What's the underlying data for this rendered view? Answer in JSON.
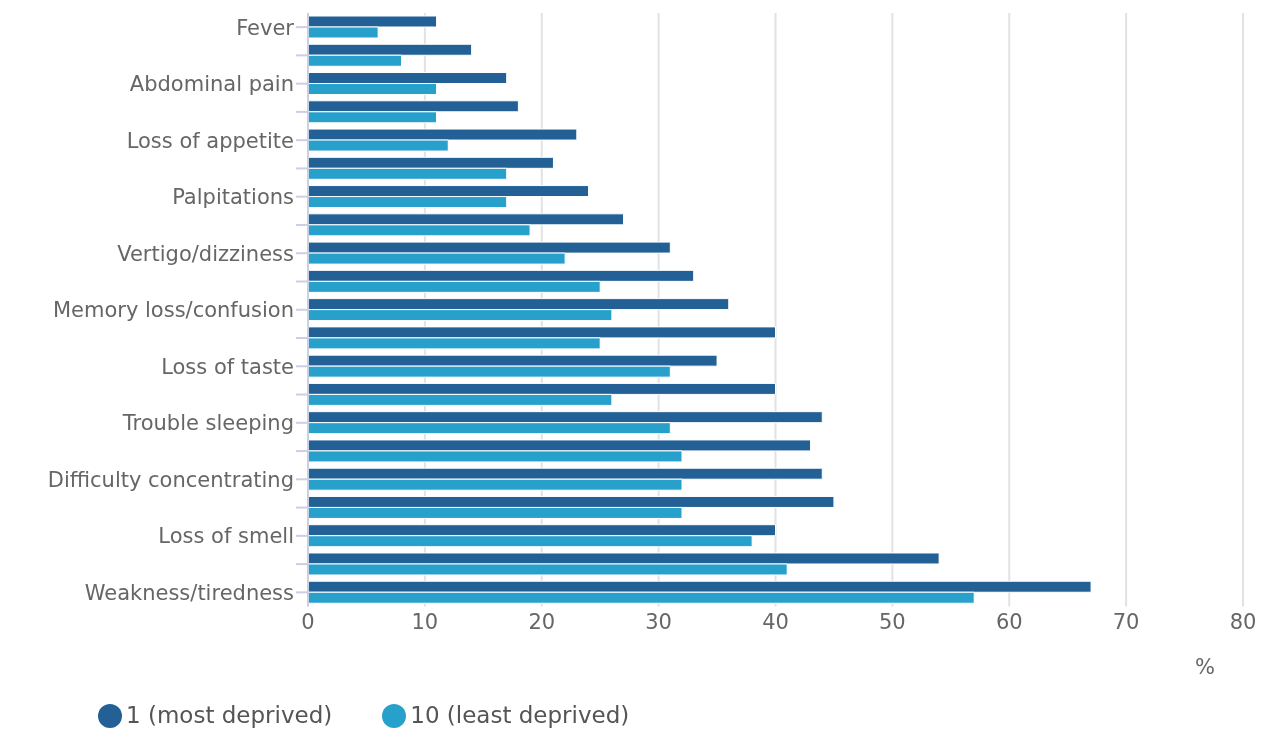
{
  "chart_data": {
    "type": "bar",
    "orientation": "horizontal",
    "xlabel": "%",
    "categories": [
      "Fever",
      null,
      "Abdominal pain",
      null,
      "Loss of appetite",
      null,
      "Palpitations",
      null,
      "Vertigo/dizziness",
      null,
      "Memory loss/confusion",
      null,
      "Loss of taste",
      null,
      "Trouble sleeping",
      null,
      "Difficulty concentrating",
      null,
      "Loss of smell",
      null,
      "Weakness/tiredness"
    ],
    "series": [
      {
        "name": "1 (most deprived)",
        "color": "#226096",
        "values": [
          11,
          14,
          17,
          18,
          23,
          21,
          24,
          27,
          31,
          33,
          36,
          40,
          35,
          40,
          44,
          43,
          44,
          45,
          40,
          54,
          67
        ]
      },
      {
        "name": "10 (least deprived)",
        "color": "#28a0cc",
        "values": [
          6,
          8,
          11,
          11,
          12,
          17,
          17,
          19,
          22,
          25,
          26,
          25,
          31,
          26,
          31,
          32,
          32,
          32,
          38,
          41,
          57
        ]
      }
    ],
    "xlim": [
      0,
      80
    ],
    "xticks": [
      0,
      10,
      20,
      30,
      40,
      50,
      60,
      70,
      80
    ],
    "grid": "x",
    "legend": "bottom"
  }
}
